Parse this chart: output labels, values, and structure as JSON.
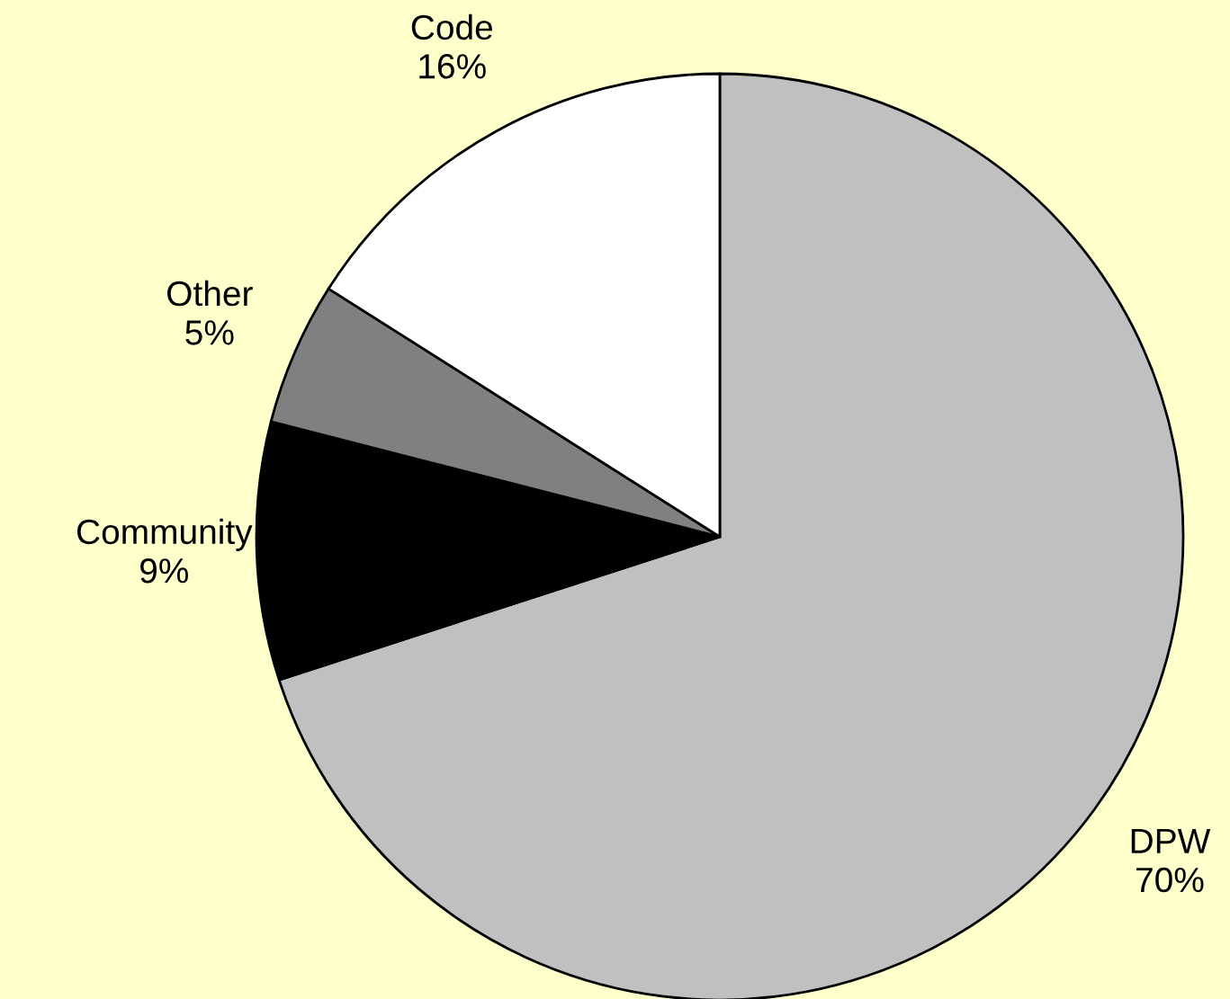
{
  "chart_data": {
    "type": "pie",
    "categories": [
      "DPW",
      "Community",
      "Other",
      "Code"
    ],
    "values": [
      70,
      9,
      5,
      16
    ],
    "value_labels": [
      "70%",
      "9%",
      "5%",
      "16%"
    ],
    "colors": [
      "#c0c0c0",
      "#000000",
      "#808080",
      "#ffffff"
    ]
  }
}
